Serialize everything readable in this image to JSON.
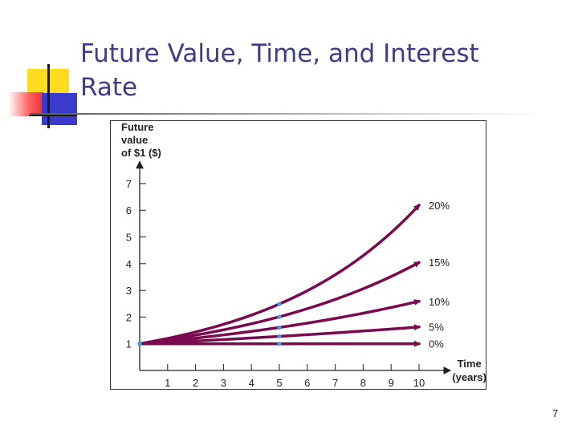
{
  "slide": {
    "title": "Future Value, Time, and Interest Rate",
    "page_number": "7"
  },
  "colors": {
    "title": "#3c3c88",
    "curve": "#7a0a4e",
    "marker": "#3aa0d8",
    "deco_yellow": "#ffdc1e",
    "deco_red": "#f03030",
    "deco_blue": "#3a3acf"
  },
  "chart_data": {
    "type": "line",
    "ylabel_lines": [
      "Future",
      "value",
      "of $1 ($)"
    ],
    "xlabel_lines": [
      "Time",
      "(years)"
    ],
    "x_ticks": [
      "1",
      "2",
      "3",
      "4",
      "5",
      "6",
      "7",
      "8",
      "9",
      "10"
    ],
    "y_ticks": [
      "1",
      "2",
      "3",
      "4",
      "5",
      "6",
      "7"
    ],
    "xlim": [
      0,
      10
    ],
    "ylim": [
      0,
      7
    ],
    "grid": false,
    "series": [
      {
        "name": "0%",
        "rate": 0.0,
        "x": [
          0,
          1,
          2,
          3,
          4,
          5,
          6,
          7,
          8,
          9,
          10
        ],
        "values": [
          1,
          1,
          1,
          1,
          1,
          1,
          1,
          1,
          1,
          1,
          1
        ]
      },
      {
        "name": "5%",
        "rate": 0.05,
        "x": [
          0,
          1,
          2,
          3,
          4,
          5,
          6,
          7,
          8,
          9,
          10
        ],
        "values": [
          1,
          1.05,
          1.1,
          1.16,
          1.22,
          1.28,
          1.34,
          1.41,
          1.48,
          1.55,
          1.63
        ]
      },
      {
        "name": "10%",
        "rate": 0.1,
        "x": [
          0,
          1,
          2,
          3,
          4,
          5,
          6,
          7,
          8,
          9,
          10
        ],
        "values": [
          1,
          1.1,
          1.21,
          1.33,
          1.46,
          1.61,
          1.77,
          1.95,
          2.14,
          2.36,
          2.59
        ]
      },
      {
        "name": "15%",
        "rate": 0.15,
        "x": [
          0,
          1,
          2,
          3,
          4,
          5,
          6,
          7,
          8,
          9,
          10
        ],
        "values": [
          1,
          1.15,
          1.32,
          1.52,
          1.75,
          2.01,
          2.31,
          2.66,
          3.06,
          3.52,
          4.05
        ]
      },
      {
        "name": "20%",
        "rate": 0.2,
        "x": [
          0,
          1,
          2,
          3,
          4,
          5,
          6,
          7,
          8,
          9,
          10
        ],
        "values": [
          1,
          1.2,
          1.44,
          1.73,
          2.07,
          2.49,
          2.99,
          3.58,
          4.3,
          5.16,
          6.19
        ]
      }
    ],
    "markers_at_x": [
      0,
      5
    ]
  }
}
